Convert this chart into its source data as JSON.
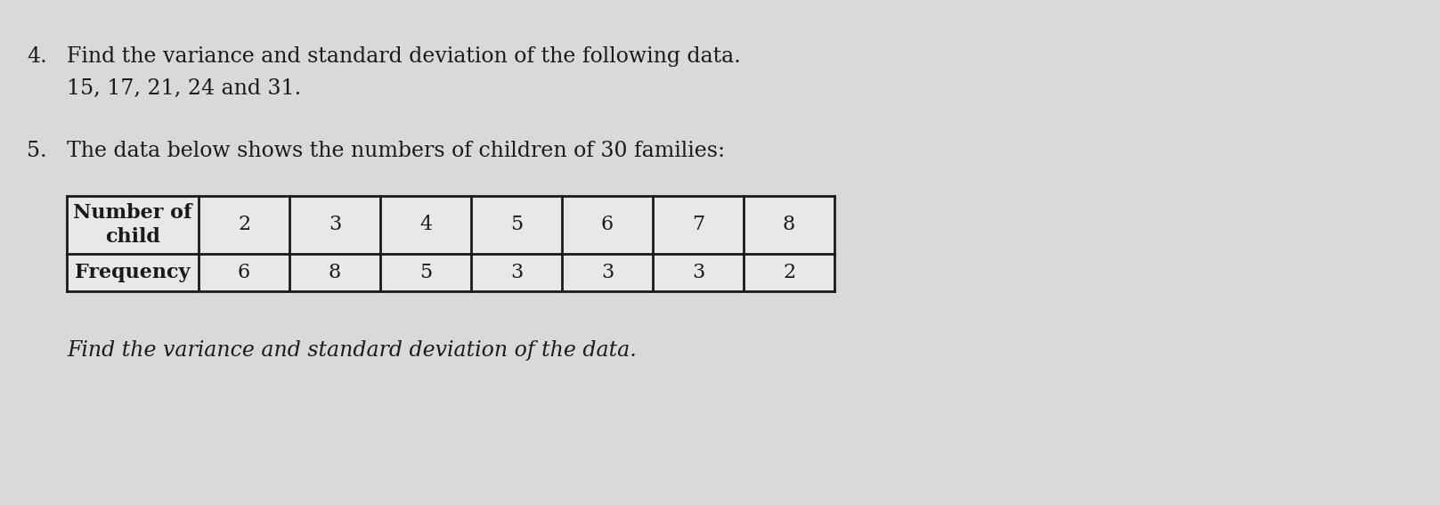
{
  "background_color": "#d9d9d9",
  "text_color": "#1a1a1a",
  "line4_number": "4.",
  "line4_text": "Find the variance and standard deviation of the following data.",
  "line4b_text": "15, 17, 21, 24 and 31.",
  "line5_number": "5.",
  "line5_text": "The data below shows the numbers of children of 30 families:",
  "table_col_headers": [
    "Number of\nchild",
    "2",
    "3",
    "4",
    "5",
    "6",
    "7",
    "8"
  ],
  "table_row2": [
    "Frequency",
    "6",
    "8",
    "5",
    "3",
    "3",
    "3",
    "2"
  ],
  "footer_text": "Find the variance and standard deviation of the data.",
  "font_size_main": 17,
  "font_size_table": 16
}
